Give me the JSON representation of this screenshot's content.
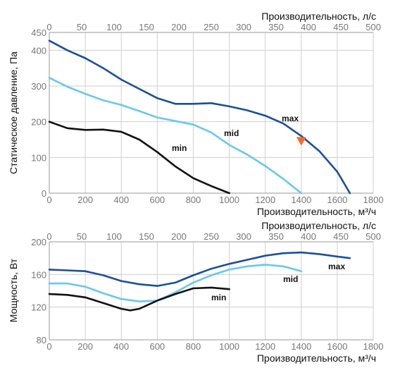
{
  "chart_data": [
    {
      "type": "line",
      "xlabel": "Производительность, м³/ч",
      "x2label": "Производительность, л/с",
      "ylabel": "Статическое давление, Па",
      "xlim": [
        0,
        1800
      ],
      "x2lim": [
        0,
        500
      ],
      "ylim": [
        0,
        450
      ],
      "xticks": [
        "0",
        "200",
        "400",
        "600",
        "800",
        "1000",
        "1200",
        "1400",
        "1600",
        "1800"
      ],
      "x2ticks": [
        "0",
        "50",
        "100",
        "150",
        "200",
        "250",
        "300",
        "350",
        "400",
        "450",
        "500"
      ],
      "yticks": [
        "0",
        "100",
        "200",
        "300",
        "400",
        "450"
      ],
      "grid": true,
      "series": [
        {
          "name": "max",
          "color": "#1a4f9c",
          "x": [
            0,
            100,
            200,
            300,
            400,
            500,
            600,
            700,
            800,
            900,
            1000,
            1100,
            1200,
            1300,
            1400,
            1500,
            1600,
            1670
          ],
          "y": [
            427,
            400,
            378,
            350,
            318,
            292,
            266,
            250,
            250,
            252,
            243,
            232,
            217,
            195,
            160,
            118,
            60,
            0
          ]
        },
        {
          "name": "mid",
          "color": "#69c7ee",
          "x": [
            0,
            100,
            200,
            300,
            400,
            500,
            600,
            700,
            800,
            900,
            1000,
            1100,
            1200,
            1300,
            1400
          ],
          "y": [
            323,
            298,
            278,
            260,
            247,
            230,
            212,
            202,
            192,
            170,
            135,
            108,
            76,
            40,
            0
          ]
        },
        {
          "name": "min",
          "color": "#111111",
          "x": [
            0,
            100,
            200,
            300,
            400,
            500,
            600,
            700,
            800,
            900,
            1000
          ],
          "y": [
            200,
            182,
            177,
            178,
            172,
            150,
            115,
            75,
            42,
            20,
            0
          ]
        }
      ],
      "annotations": [
        {
          "type": "marker",
          "shape": "triangle-down",
          "x": 1400,
          "y": 145,
          "color": "#f26a2c"
        }
      ]
    },
    {
      "type": "line",
      "xlabel": "Производительность, м³/ч",
      "x2label": "Производительность, л/с",
      "ylabel": "Мощность, Вт",
      "xlim": [
        0,
        1800
      ],
      "x2lim": [
        0,
        500
      ],
      "ylim": [
        80,
        200
      ],
      "xticks": [
        "0",
        "200",
        "400",
        "600",
        "800",
        "1000",
        "1200",
        "1400",
        "1600",
        "1800"
      ],
      "x2ticks": [
        "0",
        "50",
        "100",
        "150",
        "200",
        "250",
        "300",
        "350",
        "400",
        "450",
        "500"
      ],
      "yticks": [
        "80",
        "120",
        "160",
        "200"
      ],
      "grid": true,
      "series": [
        {
          "name": "max",
          "color": "#1a4f9c",
          "x": [
            0,
            100,
            200,
            300,
            400,
            500,
            600,
            700,
            800,
            900,
            1000,
            1100,
            1200,
            1300,
            1400,
            1500,
            1600,
            1670
          ],
          "y": [
            166,
            165,
            164,
            159,
            152,
            148,
            146,
            150,
            159,
            167,
            173,
            178,
            183,
            186,
            187,
            185,
            182,
            180
          ]
        },
        {
          "name": "mid",
          "color": "#69c7ee",
          "x": [
            0,
            100,
            200,
            300,
            400,
            500,
            600,
            700,
            800,
            900,
            1000,
            1100,
            1200,
            1300,
            1400
          ],
          "y": [
            149,
            149,
            145,
            137,
            130,
            127,
            128,
            138,
            150,
            159,
            166,
            170,
            172,
            170,
            164
          ]
        },
        {
          "name": "min",
          "color": "#111111",
          "x": [
            0,
            100,
            200,
            300,
            400,
            450,
            500,
            600,
            700,
            800,
            900,
            1000
          ],
          "y": [
            136,
            135,
            132,
            125,
            118,
            116,
            118,
            128,
            136,
            143,
            144,
            142
          ]
        }
      ]
    }
  ]
}
